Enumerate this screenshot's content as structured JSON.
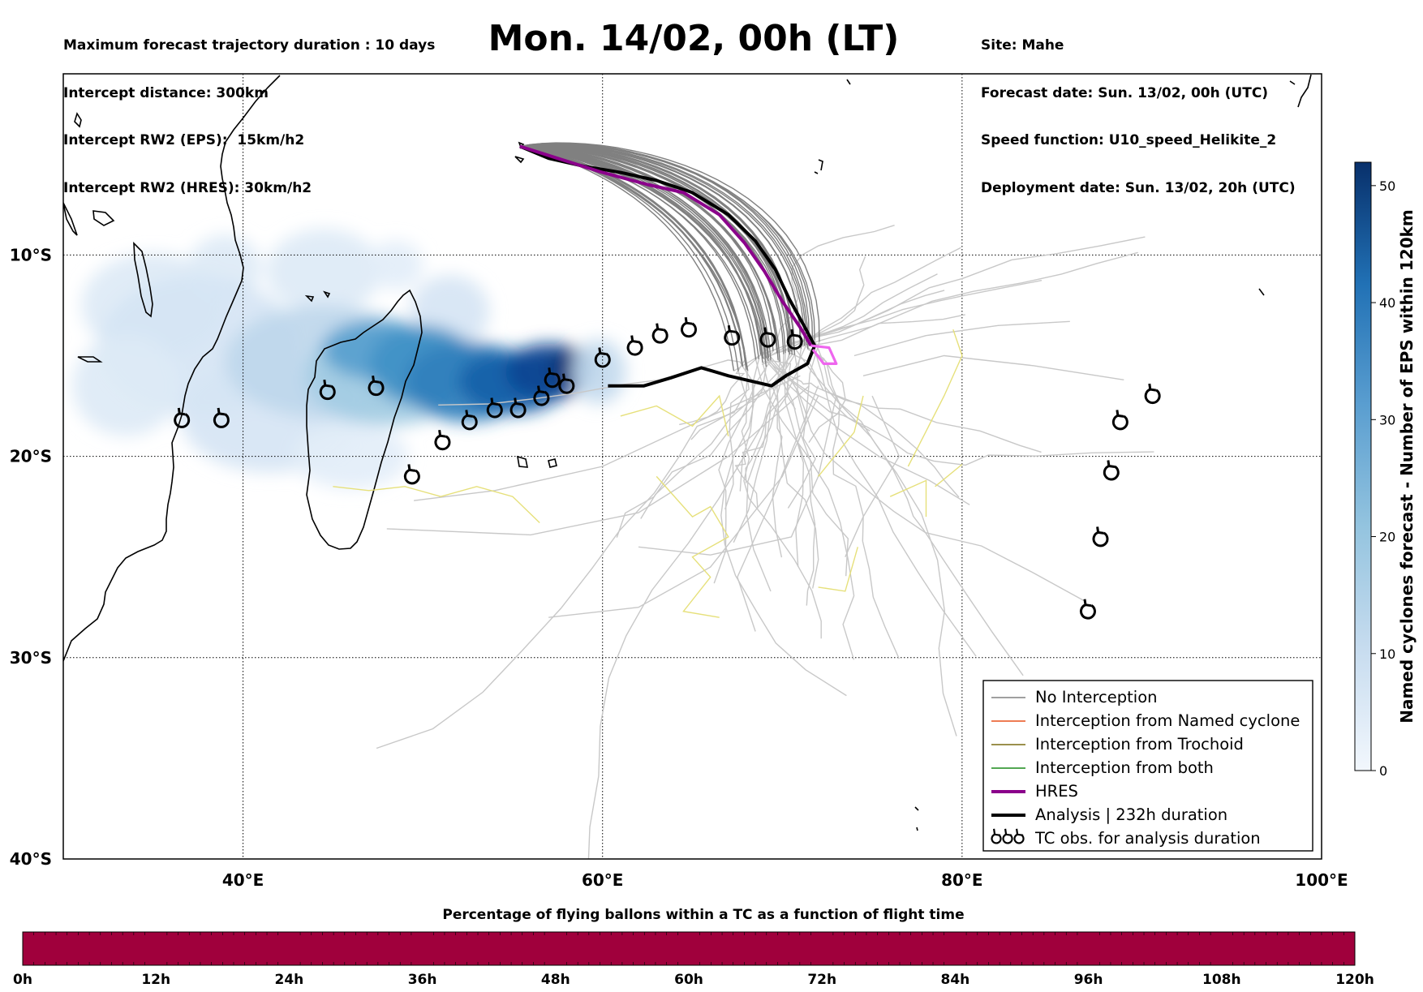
{
  "header": {
    "info_left": [
      "Maximum forecast trajectory duration : 10 days",
      "Intercept distance: 300km",
      "Intercept RW2 (EPS):  15km/h2",
      "Intercept RW2 (HRES): 30km/h2"
    ],
    "title": "Mon. 14/02, 00h (LT)",
    "info_right": [
      "Site: Mahe",
      "Forecast date: Sun. 13/02, 00h (UTC)",
      "Speed function: U10_speed_Helikite_2",
      "Deployment date: Sun. 13/02, 20h (UTC)"
    ]
  },
  "map": {
    "lon_range": [
      30,
      100
    ],
    "lat_range": [
      -1,
      -40
    ],
    "lat_labels": [
      {
        "lat": -10,
        "text": "10°S"
      },
      {
        "lat": -20,
        "text": "20°S"
      },
      {
        "lat": -30,
        "text": "30°S"
      },
      {
        "lat": -40,
        "text": "40°S"
      }
    ],
    "lon_labels": [
      {
        "lon": 40,
        "text": "40°E"
      },
      {
        "lon": 60,
        "text": "60°E"
      },
      {
        "lon": 80,
        "text": "80°E"
      },
      {
        "lon": 100,
        "text": "100°E"
      }
    ],
    "colors": {
      "no_interception": "#808080",
      "late_members": "#c8c8c8",
      "trochoid_late": "#e6e07a",
      "hres": "#8b008b",
      "hres_late": "#ee66ee",
      "analysis": "#000000",
      "density_light": "#dae8f5",
      "density_dark": "#08306b"
    },
    "origin": {
      "lon": 55.4,
      "lat": -4.6
    },
    "analysis_track": [
      [
        55.4,
        -4.6
      ],
      [
        57,
        -5.2
      ],
      [
        59,
        -5.6
      ],
      [
        61,
        -5.9
      ],
      [
        63,
        -6.3
      ],
      [
        65,
        -6.9
      ],
      [
        67,
        -8.0
      ],
      [
        68.5,
        -9.3
      ],
      [
        69.6,
        -10.7
      ],
      [
        70.4,
        -12.2
      ],
      [
        71.2,
        -13.5
      ],
      [
        71.8,
        -14.5
      ],
      [
        71.4,
        -15.4
      ],
      [
        70.2,
        -16.0
      ],
      [
        69.4,
        -16.5
      ],
      [
        67,
        -16.0
      ],
      [
        65.5,
        -15.6
      ],
      [
        63.8,
        -16.1
      ],
      [
        62.3,
        -16.5
      ],
      [
        60.3,
        -16.5
      ]
    ],
    "hres_track": [
      [
        55.4,
        -4.6
      ],
      [
        57.5,
        -5.2
      ],
      [
        60,
        -5.9
      ],
      [
        62.5,
        -6.5
      ],
      [
        64.5,
        -6.9
      ],
      [
        66.5,
        -8.0
      ],
      [
        67.9,
        -9.4
      ],
      [
        69,
        -10.8
      ],
      [
        70,
        -12.3
      ],
      [
        71,
        -13.6
      ],
      [
        71.6,
        -14.5
      ]
    ],
    "hres_late_track": [
      [
        71.6,
        -14.5
      ],
      [
        72.6,
        -14.6
      ],
      [
        73,
        -15.4
      ],
      [
        72.3,
        -15.4
      ],
      [
        71.7,
        -14.7
      ]
    ],
    "density_blobs": [
      {
        "lon": 35.0,
        "lat": -12.5,
        "rx": 4.0,
        "ry": 2.6,
        "v": 4
      },
      {
        "lon": 39.0,
        "lat": -10.6,
        "rx": 2.0,
        "ry": 1.6,
        "v": 4
      },
      {
        "lon": 37.5,
        "lat": -14.5,
        "rx": 5.5,
        "ry": 3.5,
        "v": 5
      },
      {
        "lon": 33.5,
        "lat": -16.5,
        "rx": 3.0,
        "ry": 2.5,
        "v": 4
      },
      {
        "lon": 41.5,
        "lat": -18.0,
        "rx": 5.0,
        "ry": 2.8,
        "v": 5
      },
      {
        "lon": 46.0,
        "lat": -20.0,
        "rx": 3.2,
        "ry": 1.6,
        "v": 3
      },
      {
        "lon": 44.5,
        "lat": -10.8,
        "rx": 3.2,
        "ry": 2.1,
        "v": 4
      },
      {
        "lon": 48.5,
        "lat": -10.5,
        "rx": 1.5,
        "ry": 1.2,
        "v": 3
      },
      {
        "lon": 51.5,
        "lat": -12.8,
        "rx": 2.2,
        "ry": 1.8,
        "v": 5
      },
      {
        "lon": 44.5,
        "lat": -15.3,
        "rx": 5.5,
        "ry": 2.8,
        "v": 9
      },
      {
        "lon": 48.0,
        "lat": -16.0,
        "rx": 4.5,
        "ry": 2.5,
        "v": 14
      },
      {
        "lon": 47.6,
        "lat": -14.7,
        "rx": 3.2,
        "ry": 1.5,
        "v": 26
      },
      {
        "lon": 50.0,
        "lat": -15.5,
        "rx": 3.0,
        "ry": 2.0,
        "v": 30
      },
      {
        "lon": 52.5,
        "lat": -16.3,
        "rx": 3.5,
        "ry": 2.0,
        "v": 34
      },
      {
        "lon": 55.0,
        "lat": -16.3,
        "rx": 3.0,
        "ry": 1.6,
        "v": 40
      },
      {
        "lon": 57.0,
        "lat": -15.8,
        "rx": 2.4,
        "ry": 1.4,
        "v": 45
      },
      {
        "lon": 58.3,
        "lat": -15.6,
        "rx": 1.3,
        "ry": 1.0,
        "v": 50
      },
      {
        "lon": 59.8,
        "lat": -15.8,
        "rx": 1.5,
        "ry": 1.6,
        "v": 8
      }
    ],
    "tc_obs": [
      [
        36.6,
        -18.2
      ],
      [
        38.8,
        -18.2
      ],
      [
        44.7,
        -16.8
      ],
      [
        47.4,
        -16.6
      ],
      [
        49.4,
        -21.0
      ],
      [
        51.1,
        -19.3
      ],
      [
        52.6,
        -18.3
      ],
      [
        54.0,
        -17.7
      ],
      [
        55.3,
        -17.7
      ],
      [
        56.6,
        -17.1
      ],
      [
        57.2,
        -16.2
      ],
      [
        58.0,
        -16.5
      ],
      [
        60.0,
        -15.2
      ],
      [
        61.8,
        -14.6
      ],
      [
        63.2,
        -14.0
      ],
      [
        64.8,
        -13.7
      ],
      [
        67.2,
        -14.1
      ],
      [
        69.2,
        -14.2
      ],
      [
        70.7,
        -14.3
      ],
      [
        87.0,
        -27.7
      ],
      [
        87.7,
        -24.1
      ],
      [
        88.3,
        -20.8
      ],
      [
        88.8,
        -18.3
      ],
      [
        90.6,
        -17.0
      ]
    ]
  },
  "legend": {
    "items": [
      {
        "label": "No Interception",
        "color": "#808080",
        "width": 1.5
      },
      {
        "label": "Interception from Named cyclone",
        "color": "#e8501c",
        "width": 1.5
      },
      {
        "label": "Interception from Trochoid",
        "color": "#7a6b10",
        "width": 1.5
      },
      {
        "label": "Interception from both",
        "color": "#1a8a1a",
        "width": 1.5
      },
      {
        "label": "HRES",
        "color": "#8b008b",
        "width": 4
      },
      {
        "label": "Analysis | 232h duration",
        "color": "#000000",
        "width": 4
      },
      {
        "label": "TC obs. for analysis duration",
        "color": "",
        "width": 0
      }
    ]
  },
  "colorbar": {
    "label": "Named cyclones forecast - Number of EPS within 120km",
    "ticks": [
      "0",
      "10",
      "20",
      "30",
      "40",
      "50"
    ],
    "max": 52
  },
  "percentage_bar": {
    "title": "Percentage of flying ballons within a TC as a function of flight time",
    "ticks": [
      "0h",
      "12h",
      "24h",
      "36h",
      "48h",
      "60h",
      "72h",
      "84h",
      "96h",
      "108h",
      "120h"
    ],
    "fill_fraction": 1.0,
    "color": "#a0003c"
  }
}
